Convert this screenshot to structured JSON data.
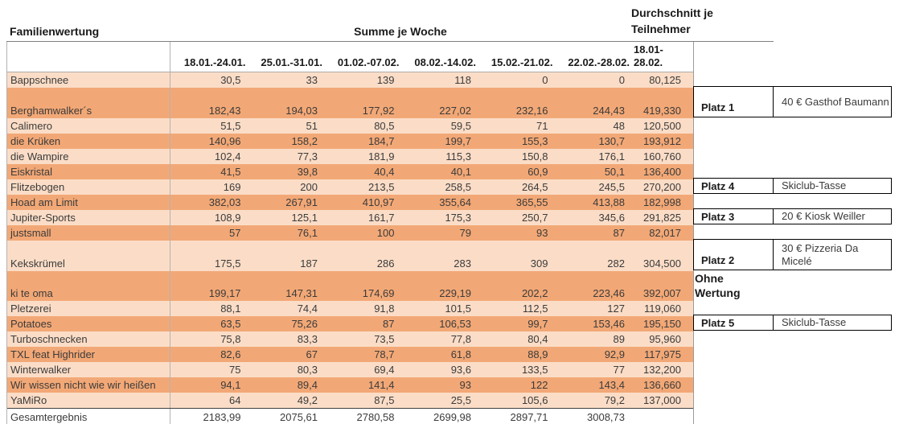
{
  "headings": {
    "familienwertung": "Familienwertung",
    "summe_je_woche": "Summe je Woche",
    "durchschnitt_je_teilnehmer": "Durchschnitt je Teilnehmer"
  },
  "columns": {
    "weeks": [
      "18.01.-24.01.",
      "25.01.-31.01.",
      "01.02.-07.02.",
      "08.02.-14.02.",
      "15.02.-21.02.",
      "22.02.-28.02."
    ],
    "average_period": "18.01-28.02."
  },
  "rows": [
    {
      "name": "Bappschnee",
      "values": [
        "30,5",
        "33",
        "139",
        "118",
        "0",
        "0"
      ],
      "average": "80,125",
      "tall": false
    },
    {
      "name": "Berghamwalker´s",
      "values": [
        "182,43",
        "194,03",
        "177,92",
        "227,02",
        "232,16",
        "244,43"
      ],
      "average": "419,330",
      "tall": true
    },
    {
      "name": "Calimero",
      "values": [
        "51,5",
        "51",
        "80,5",
        "59,5",
        "71",
        "48"
      ],
      "average": "120,500",
      "tall": false
    },
    {
      "name": "die Krüken",
      "values": [
        "140,96",
        "158,2",
        "184,7",
        "199,7",
        "155,3",
        "130,7"
      ],
      "average": "193,912",
      "tall": false
    },
    {
      "name": "die Wampire",
      "values": [
        "102,4",
        "77,3",
        "181,9",
        "115,3",
        "150,8",
        "176,1"
      ],
      "average": "160,760",
      "tall": false
    },
    {
      "name": "Eiskristal",
      "values": [
        "41,5",
        "39,8",
        "40,4",
        "40,1",
        "60,9",
        "50,1"
      ],
      "average": "136,400",
      "tall": false
    },
    {
      "name": "Flitzebogen",
      "values": [
        "169",
        "200",
        "213,5",
        "258,5",
        "264,5",
        "245,5"
      ],
      "average": "270,200",
      "tall": false
    },
    {
      "name": "Hoad am Limit",
      "values": [
        "382,03",
        "267,91",
        "410,97",
        "355,64",
        "365,55",
        "413,88"
      ],
      "average": "182,998",
      "tall": false
    },
    {
      "name": "Jupiter-Sports",
      "values": [
        "108,9",
        "125,1",
        "161,7",
        "175,3",
        "250,7",
        "345,6"
      ],
      "average": "291,825",
      "tall": false
    },
    {
      "name": "justsmall",
      "values": [
        "57",
        "76,1",
        "100",
        "79",
        "93",
        "87"
      ],
      "average": "82,017",
      "tall": false
    },
    {
      "name": "Kekskrümel",
      "values": [
        "175,5",
        "187",
        "286",
        "283",
        "309",
        "282"
      ],
      "average": "304,500",
      "tall": true
    },
    {
      "name": "ki te oma",
      "values": [
        "199,17",
        "147,31",
        "174,69",
        "229,19",
        "202,2",
        "223,46"
      ],
      "average": "392,007",
      "tall": true
    },
    {
      "name": "Pletzerei",
      "values": [
        "88,1",
        "74,4",
        "91,8",
        "101,5",
        "112,5",
        "127"
      ],
      "average": "119,060",
      "tall": false
    },
    {
      "name": "Potatoes",
      "values": [
        "63,5",
        "75,26",
        "87",
        "106,53",
        "99,7",
        "153,46"
      ],
      "average": "195,150",
      "tall": false
    },
    {
      "name": "Turboschnecken",
      "values": [
        "75,8",
        "83,3",
        "73,5",
        "77,8",
        "80,4",
        "89"
      ],
      "average": "95,960",
      "tall": false
    },
    {
      "name": "TXL feat Highrider",
      "values": [
        "82,6",
        "67",
        "78,7",
        "61,8",
        "88,9",
        "92,9"
      ],
      "average": "117,975",
      "tall": false
    },
    {
      "name": "Winterwalker",
      "values": [
        "75",
        "80,3",
        "69,4",
        "93,6",
        "133,5",
        "77"
      ],
      "average": "132,200",
      "tall": false
    },
    {
      "name": "Wir wissen nicht wie wir heißen",
      "values": [
        "94,1",
        "89,4",
        "141,4",
        "93",
        "122",
        "143,4"
      ],
      "average": "136,660",
      "tall": false
    },
    {
      "name": "YaMiRo",
      "values": [
        "64",
        "49,2",
        "87,5",
        "25,5",
        "105,6",
        "79,2"
      ],
      "average": "137,000",
      "tall": false
    }
  ],
  "total": {
    "label": "Gesamtergebnis",
    "values": [
      "2183,99",
      "2075,61",
      "2780,58",
      "2699,98",
      "2897,71",
      "3008,73"
    ],
    "average": ""
  },
  "prizes": {
    "platz1": {
      "label": "Platz 1",
      "prize": "40 € Gasthof Baumann"
    },
    "platz4": {
      "label": "Platz 4",
      "prize": "Skiclub-Tasse"
    },
    "platz3": {
      "label": "Platz 3",
      "prize": "20 € Kiosk Weiller"
    },
    "platz2": {
      "label": "Platz 2",
      "prize": "30 € Pizzeria Da Micelé"
    },
    "platz5": {
      "label": "Platz 5",
      "prize": "Skiclub-Tasse"
    },
    "ohne_wertung": "Ohne Wertung"
  },
  "colors": {
    "band_light": "#FBDDC7",
    "band_dark": "#F2A876",
    "gridline": "#ABABAB",
    "prize_border": "#000000"
  }
}
